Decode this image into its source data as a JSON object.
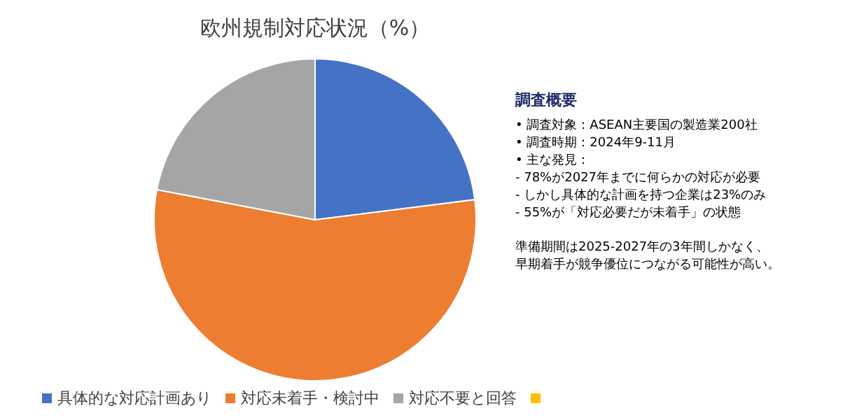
{
  "chart_data": {
    "type": "pie",
    "title": "欧州規制対応状況（%）",
    "categories": [
      "具体的な対応計画あり",
      "対応未着手・検討中",
      "対応不要と回答",
      null
    ],
    "values": [
      23,
      55,
      22,
      0
    ],
    "colors": [
      "#4472c4",
      "#ed7d31",
      "#a5a5a5",
      "#ffc000"
    ],
    "legend": "bottom",
    "annotations": [
      "調査概要",
      "• 調査対象：ASEAN主要国の製造業200社",
      "• 調査時期：2024年9-11月",
      "• 主な発見：",
      " - 78%が2027年までに何らかの対応が必要",
      " - しかし具体的な計画を持つ企業は23%のみ",
      " - 55%が「対応必要だが未着手」の状態",
      "準備期間は2025-2027年の3年間しかなく、",
      "早期着手が競争優位につながる可能性が高い。"
    ]
  }
}
